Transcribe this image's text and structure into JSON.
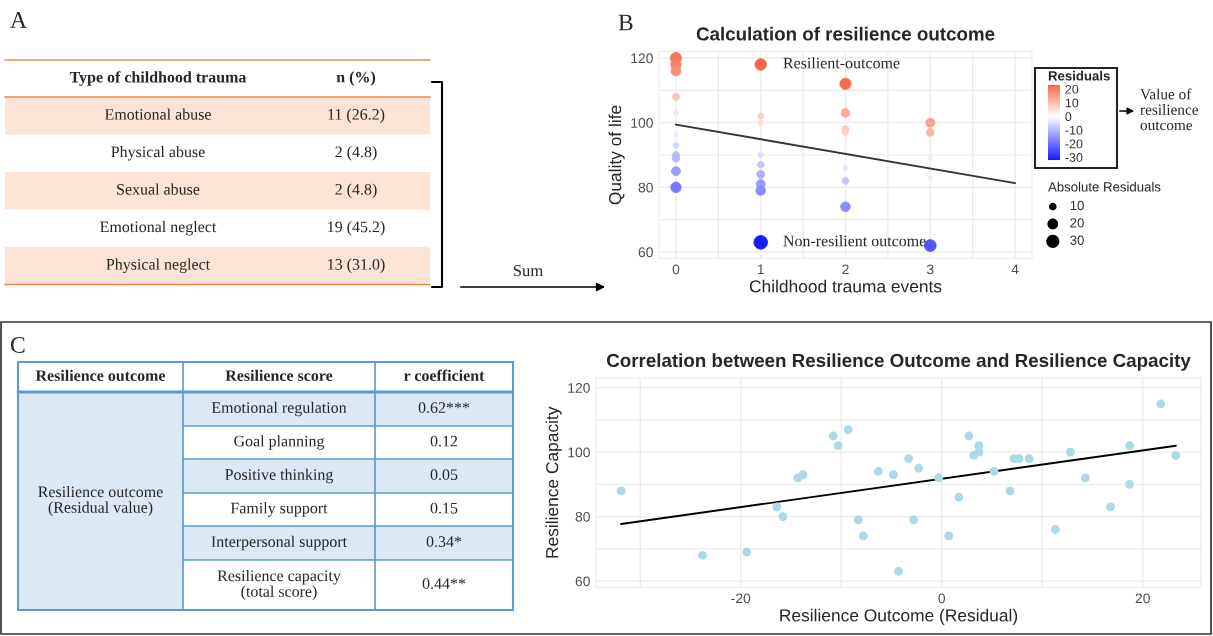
{
  "chart_data": [
    {
      "type": "other",
      "title": "A",
      "annotations": [
        "Type of childhood trauma",
        "n (%)",
        "Emotional abuse",
        "11 (26.2)",
        "Physical abuse",
        "2 (4.8)",
        "Sexual abuse",
        "2 (4.8)",
        "Emotional neglect",
        "19 (45.2)",
        "Physical neglect",
        "13 (31.0)",
        "Sum"
      ]
    },
    {
      "type": "scatter",
      "title": "Calculation of resilience outcome",
      "xlabel": "Childhood trauma events",
      "ylabel": "Quality of life",
      "clabel": "Residuals",
      "legend_title": "Absolute Residuals",
      "grid": true,
      "xlim": [
        -0.2,
        4.2
      ],
      "ylim": [
        58,
        122
      ],
      "xticks": [
        0,
        {
          "value": 0.5,
          "label": null
        },
        1,
        {
          "value": 1.5,
          "label": null
        },
        2,
        {
          "value": 2.5,
          "label": null
        },
        3,
        {
          "value": 3.5,
          "label": null
        },
        4
      ],
      "yticks": [
        60,
        {
          "value": 70,
          "label": null
        },
        80,
        {
          "value": 90,
          "label": null
        },
        100,
        {
          "value": 110,
          "label": null
        },
        120
      ],
      "clim": [
        -32,
        23
      ],
      "cticks": [
        20,
        10,
        0,
        -10,
        -20,
        -30
      ],
      "size_legend": [
        10,
        20,
        30
      ],
      "series": [
        {
          "type": "scatter",
          "marker": "circle",
          "x": [
            0,
            0,
            0,
            0,
            0,
            0,
            0,
            0,
            0,
            0,
            0,
            0,
            1,
            1,
            1,
            1,
            1,
            1,
            1,
            1,
            1,
            2,
            2,
            2,
            2,
            2,
            2,
            2,
            2,
            3,
            3,
            3,
            3,
            3
          ],
          "values": [
            120,
            118,
            116,
            108,
            103,
            97,
            96,
            93,
            90,
            89,
            85,
            80,
            118,
            102,
            100,
            90,
            87,
            84,
            81,
            79,
            63,
            112,
            103,
            98,
            97,
            92,
            86,
            82,
            74,
            100,
            97,
            89,
            83,
            62
          ],
          "cvalues": [
            21,
            19,
            17,
            9,
            4,
            -2,
            -3,
            -6,
            -9,
            -10,
            -14,
            -19,
            23,
            7,
            5,
            -5,
            -8,
            -11,
            -14,
            -16,
            -32,
            22,
            13,
            8,
            7,
            2,
            -4,
            -8,
            -16,
            14,
            11,
            3,
            -3,
            -24
          ],
          "sizes": [
            21,
            19,
            17,
            9,
            4,
            2,
            3,
            6,
            9,
            10,
            14,
            19,
            23,
            7,
            5,
            5,
            8,
            11,
            14,
            16,
            32,
            22,
            13,
            8,
            7,
            2,
            4,
            8,
            16,
            14,
            11,
            3,
            3,
            24
          ],
          "colors": [
            "#f5765a",
            "#f68369",
            "#f79079",
            "#fbc4b8",
            "#fde5e0",
            "#f1f1ff",
            "#eaeaff",
            "#d4d4ff",
            "#bfbfff",
            "#b7b7ff",
            "#9b9bff",
            "#7777ff",
            "#f4694a",
            "#fcd1c8",
            "#fdded8",
            "#dbdbff",
            "#c6c6ff",
            "#b0b0ff",
            "#9b9bff",
            "#8c8cff",
            "#1a1aff",
            "#f56f52",
            "#f9aa99",
            "#fbcbc0",
            "#fcd1c8",
            "#fef2ef",
            "#e2e2ff",
            "#c6c6ff",
            "#8c8cff",
            "#f8a491",
            "#fab7a8",
            "#feebe7",
            "#eaeaff",
            "#5353ff"
          ]
        },
        {
          "type": "line",
          "x": [
            0,
            4
          ],
          "values": [
            99.4,
            81.3
          ],
          "color": "#333333"
        }
      ],
      "annotations": [
        "B",
        {
          "text": "Resilient-outcome",
          "x": 1,
          "y": 118
        },
        {
          "text": "Non-resilient outcome",
          "x": 1,
          "y": 63
        },
        "Value of resilience outcome"
      ]
    },
    {
      "type": "other",
      "title": "C",
      "annotations": [
        "Resilience outcome",
        "Resilience score",
        "r coefficient",
        "Resilience outcome\n(Residual value)",
        "Emotional regulation",
        "0.62***",
        "Goal planning",
        "0.12",
        "Positive thinking",
        "0.05",
        "Family support",
        "0.15",
        "Interpersonal support",
        "0.34*",
        "Resilience capacity\n(total score)",
        "0.44**"
      ]
    },
    {
      "type": "scatter",
      "title": "Correlation between Resilience Outcome and Resilience Capacity",
      "xlabel": "Resilience Outcome (Residual)",
      "ylabel": "Resilience Capacity",
      "grid": true,
      "xlim": [
        -34.4,
        25.8
      ],
      "ylim": [
        58,
        123
      ],
      "xticks": [
        {
          "value": -30,
          "label": null
        },
        -20,
        {
          "value": -10,
          "label": null
        },
        0,
        {
          "value": 10,
          "label": null
        },
        20
      ],
      "yticks": [
        60,
        {
          "value": 70,
          "label": null
        },
        80,
        {
          "value": 90,
          "label": null
        },
        100,
        {
          "value": 110,
          "label": null
        },
        120
      ],
      "series": [
        {
          "type": "scatter",
          "marker": "circle",
          "color": "#add8e6",
          "x": [
            -31.9,
            -23.8,
            -19.4,
            -16.4,
            -15.8,
            -14.3,
            -13.8,
            -10.8,
            -10.3,
            -9.3,
            -8.3,
            -7.8,
            -6.3,
            -4.8,
            -4.3,
            -3.3,
            -2.8,
            -2.3,
            -0.3,
            0.7,
            1.7,
            2.7,
            3.2,
            3.7,
            3.7,
            5.2,
            6.8,
            7.2,
            7.7,
            8.7,
            11.3,
            12.8,
            14.3,
            16.8,
            18.7,
            18.7,
            21.8,
            23.3
          ],
          "values": [
            88,
            68,
            69,
            83,
            80,
            92,
            93,
            105,
            102,
            107,
            79,
            74,
            94,
            93,
            63,
            98,
            79,
            95,
            92,
            74,
            86,
            105,
            99,
            102,
            100,
            94,
            88,
            98,
            98,
            98,
            76,
            100,
            92,
            83,
            102,
            90,
            115,
            99
          ]
        },
        {
          "type": "line",
          "color": "#000000",
          "x": [
            -31.9,
            23.3
          ],
          "values": [
            77.7,
            102.0
          ]
        }
      ]
    }
  ]
}
